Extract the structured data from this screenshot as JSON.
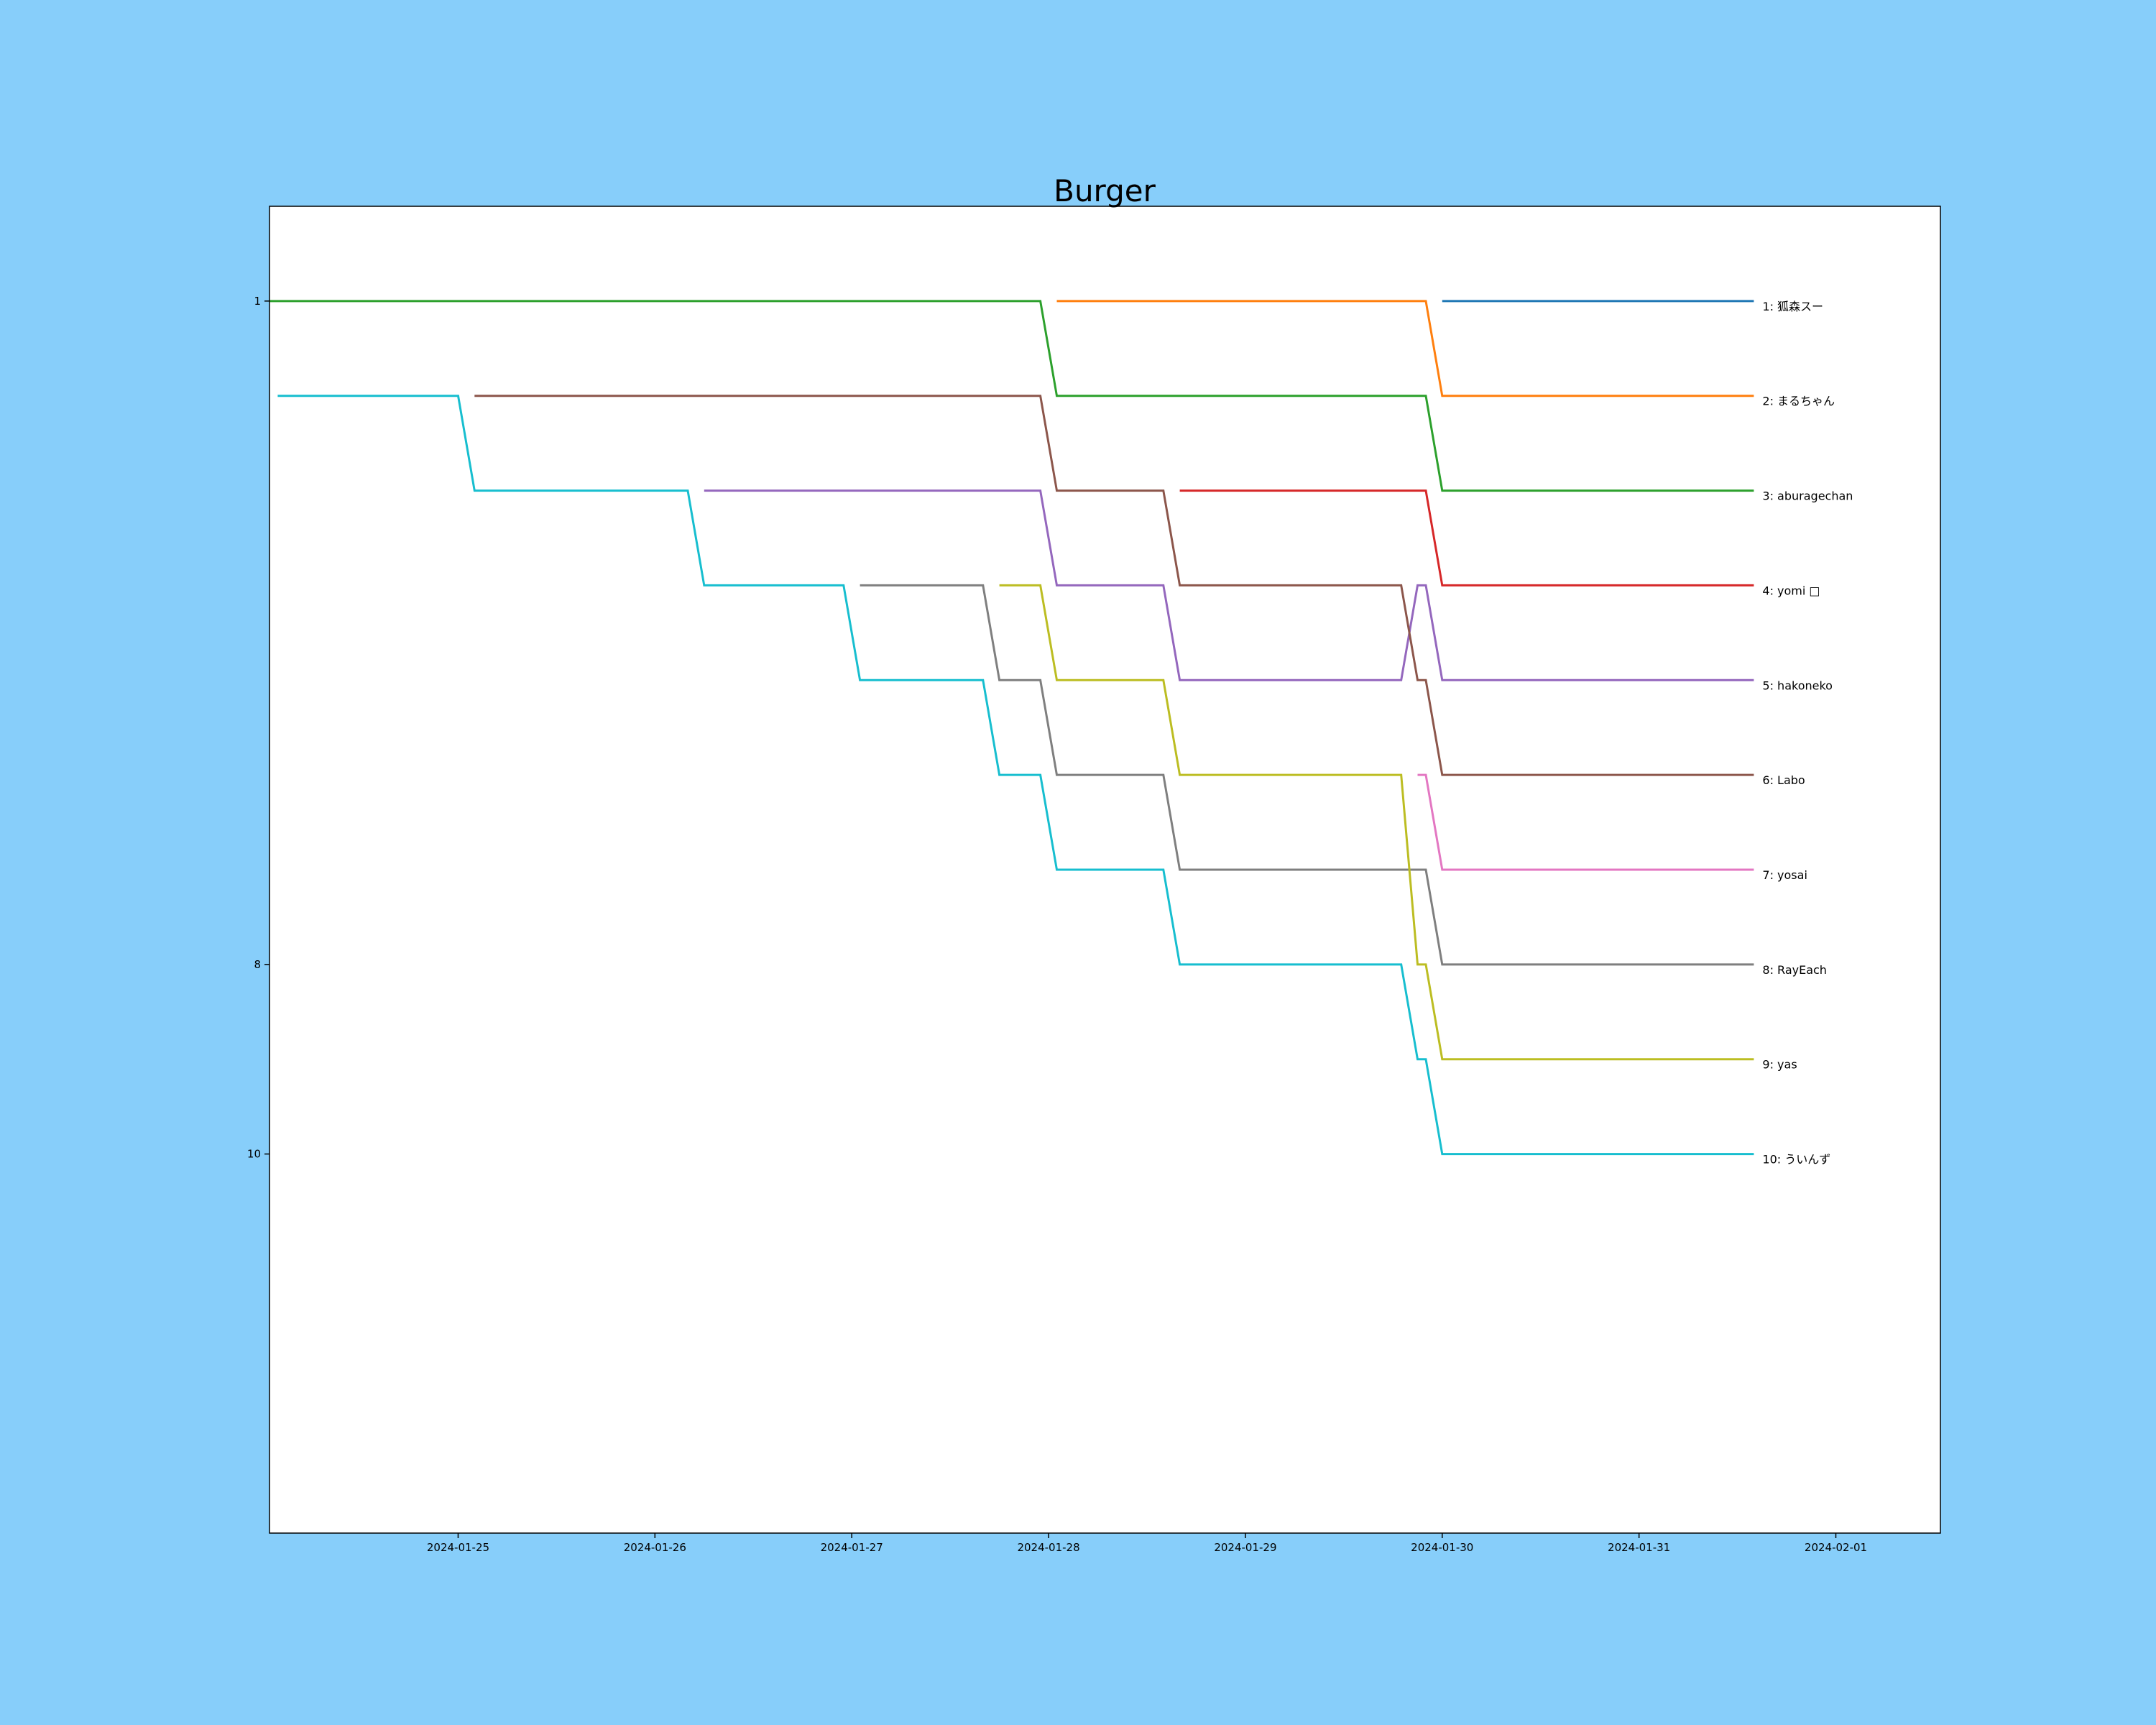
{
  "chart_data": {
    "type": "line",
    "title": "Burger",
    "background": "#87cefa",
    "xlim": [
      "2024-01-24 01:00",
      "2024-02-01 12:45"
    ],
    "xticks": [
      "2024-01-25",
      "2024-01-26",
      "2024-01-27",
      "2024-01-28",
      "2024-01-29",
      "2024-01-30",
      "2024-01-31",
      "2024-02-01"
    ],
    "ylim": [
      0,
      14
    ],
    "y_inverted": true,
    "yticks": [
      1,
      8,
      10
    ],
    "grid": false,
    "series": [
      {
        "name": "1: 狐森スー",
        "color": "#1f77b4",
        "x": [
          "2024-01-30 00:00",
          "2024-01-31 14:00"
        ],
        "values": [
          1,
          1
        ]
      },
      {
        "name": "2: まるちゃん",
        "color": "#ff7f0e",
        "x": [
          "2024-01-28 01:00",
          "2024-01-29 22:00",
          "2024-01-30 00:00",
          "2024-01-31 14:00"
        ],
        "values": [
          1,
          1,
          2,
          2
        ]
      },
      {
        "name": "3: aburagechan",
        "color": "#2ca02c",
        "x": [
          "2024-01-24 01:00",
          "2024-01-27 23:00",
          "2024-01-28 01:00",
          "2024-01-29 22:00",
          "2024-01-30 00:00",
          "2024-01-31 14:00"
        ],
        "values": [
          1,
          1,
          2,
          2,
          3,
          3
        ]
      },
      {
        "name": "4: yomi □",
        "color": "#d62728",
        "x": [
          "2024-01-28 16:00",
          "2024-01-29 22:00",
          "2024-01-30 00:00",
          "2024-01-31 14:00"
        ],
        "values": [
          3,
          3,
          4,
          4
        ]
      },
      {
        "name": "5: hakoneko",
        "color": "#9467bd",
        "x": [
          "2024-01-26 06:00",
          "2024-01-27 23:00",
          "2024-01-28 01:00",
          "2024-01-28 14:00",
          "2024-01-28 16:00",
          "2024-01-29 19:00",
          "2024-01-29 21:00",
          "2024-01-29 22:00",
          "2024-01-30 00:00",
          "2024-01-31 14:00"
        ],
        "values": [
          3,
          3,
          4,
          4,
          5,
          5,
          4,
          4,
          5,
          5
        ]
      },
      {
        "name": "6: Labo",
        "color": "#8c564b",
        "x": [
          "2024-01-25 02:00",
          "2024-01-27 23:00",
          "2024-01-28 01:00",
          "2024-01-28 14:00",
          "2024-01-28 16:00",
          "2024-01-29 19:00",
          "2024-01-29 21:00",
          "2024-01-29 22:00",
          "2024-01-30 00:00",
          "2024-01-31 14:00"
        ],
        "values": [
          2,
          2,
          3,
          3,
          4,
          4,
          5,
          5,
          6,
          6
        ]
      },
      {
        "name": "7: yosai",
        "color": "#e377c2",
        "x": [
          "2024-01-29 21:00",
          "2024-01-29 22:00",
          "2024-01-30 00:00",
          "2024-01-31 14:00"
        ],
        "values": [
          6,
          6,
          7,
          7
        ]
      },
      {
        "name": "8: RayEach",
        "color": "#7f7f7f",
        "x": [
          "2024-01-27 01:00",
          "2024-01-27 16:00",
          "2024-01-27 18:00",
          "2024-01-27 23:00",
          "2024-01-28 01:00",
          "2024-01-28 14:00",
          "2024-01-28 16:00",
          "2024-01-29 22:00",
          "2024-01-30 00:00",
          "2024-01-31 14:00"
        ],
        "values": [
          4,
          4,
          5,
          5,
          6,
          6,
          7,
          7,
          8,
          8
        ]
      },
      {
        "name": "9: yas",
        "color": "#bcbd22",
        "x": [
          "2024-01-27 18:00",
          "2024-01-27 23:00",
          "2024-01-28 01:00",
          "2024-01-28 14:00",
          "2024-01-28 16:00",
          "2024-01-29 19:00",
          "2024-01-29 21:00",
          "2024-01-29 22:00",
          "2024-01-30 00:00",
          "2024-01-31 14:00"
        ],
        "values": [
          4,
          4,
          5,
          5,
          6,
          6,
          8,
          8,
          9,
          9
        ]
      },
      {
        "name": "10: ういんず",
        "color": "#17becf",
        "x": [
          "2024-01-24 02:00",
          "2024-01-25 00:00",
          "2024-01-25 02:00",
          "2024-01-26 04:00",
          "2024-01-26 06:00",
          "2024-01-26 23:00",
          "2024-01-27 01:00",
          "2024-01-27 16:00",
          "2024-01-27 18:00",
          "2024-01-27 23:00",
          "2024-01-28 01:00",
          "2024-01-28 14:00",
          "2024-01-28 16:00",
          "2024-01-29 19:00",
          "2024-01-29 21:00",
          "2024-01-29 22:00",
          "2024-01-30 00:00",
          "2024-01-31 14:00"
        ],
        "values": [
          2,
          2,
          3,
          3,
          4,
          4,
          5,
          5,
          6,
          6,
          7,
          7,
          8,
          8,
          9,
          9,
          10,
          10
        ]
      }
    ]
  }
}
